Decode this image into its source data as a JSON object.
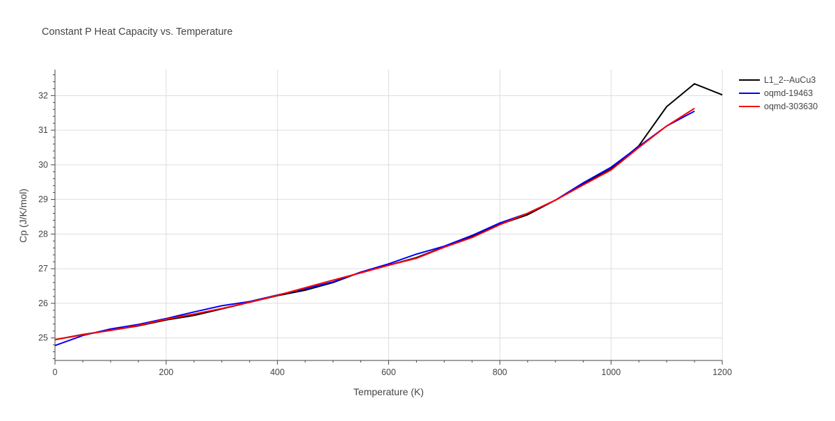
{
  "chart_data": {
    "type": "line",
    "title": "Constant P Heat Capacity vs. Temperature",
    "xlabel": "Temperature (K)",
    "ylabel": "Cp (J/K/mol)",
    "xlim": [
      0,
      1200
    ],
    "ylim": [
      24.35,
      32.75
    ],
    "xticks": [
      0,
      200,
      400,
      600,
      800,
      1000,
      1200
    ],
    "yticks": [
      25,
      26,
      27,
      28,
      29,
      30,
      31,
      32
    ],
    "grid": true,
    "legend": "right",
    "series": [
      {
        "name": "L1_2--AuCu3",
        "color": "#000000",
        "x": [
          0,
          50,
          100,
          150,
          200,
          250,
          300,
          350,
          400,
          450,
          500,
          550,
          600,
          650,
          700,
          750,
          800,
          850,
          900,
          950,
          1000,
          1050,
          1100,
          1150,
          1200
        ],
        "y": [
          24.95,
          25.1,
          25.22,
          25.35,
          25.52,
          25.65,
          25.84,
          26.03,
          26.22,
          26.38,
          26.6,
          26.9,
          27.1,
          27.32,
          27.63,
          27.93,
          28.28,
          28.56,
          28.98,
          29.45,
          29.88,
          30.55,
          31.68,
          32.34,
          32.02
        ]
      },
      {
        "name": "oqmd-19463",
        "color": "#0000ff",
        "x": [
          0,
          50,
          100,
          150,
          200,
          250,
          300,
          350,
          400,
          450,
          500,
          550,
          600,
          650,
          700,
          750,
          800,
          850,
          900,
          950,
          1000,
          1050,
          1100,
          1150
        ],
        "y": [
          24.78,
          25.07,
          25.26,
          25.39,
          25.56,
          25.75,
          25.93,
          26.05,
          26.24,
          26.42,
          26.62,
          26.9,
          27.14,
          27.42,
          27.65,
          27.96,
          28.32,
          28.6,
          28.98,
          29.48,
          29.93,
          30.53,
          31.12,
          31.55
        ]
      },
      {
        "name": "oqmd-303630",
        "color": "#ff0000",
        "x": [
          0,
          50,
          100,
          150,
          200,
          250,
          300,
          350,
          400,
          450,
          500,
          550,
          600,
          650,
          700,
          750,
          800,
          850,
          900,
          950,
          1000,
          1050,
          1100,
          1150
        ],
        "y": [
          24.95,
          25.09,
          25.22,
          25.36,
          25.54,
          25.69,
          25.85,
          26.03,
          26.23,
          26.45,
          26.67,
          26.88,
          27.1,
          27.3,
          27.62,
          27.9,
          28.27,
          28.6,
          28.98,
          29.42,
          29.85,
          30.5,
          31.12,
          31.63
        ]
      }
    ]
  }
}
